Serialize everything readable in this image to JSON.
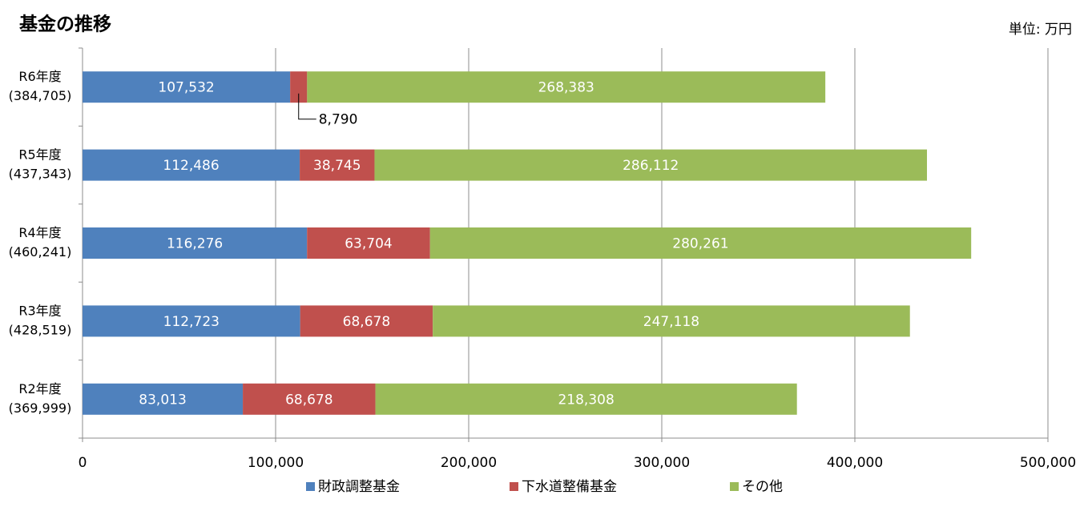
{
  "chart_data": {
    "type": "stacked-barh",
    "title": "基金の推移",
    "unit_label": "単位: 万円",
    "categories": [
      "R6年度",
      "R5年度",
      "R4年度",
      "R3年度",
      "R2年度"
    ],
    "category_totals": [
      "(384,705)",
      "(437,343)",
      "(460,241)",
      "(428,519)",
      "(369,999)"
    ],
    "series": [
      {
        "name": "財政調整基金",
        "color": "#4f81bd",
        "values": [
          107532,
          112486,
          116276,
          112723,
          83013
        ],
        "value_labels": [
          "107,532",
          "112,486",
          "116,276",
          "112,723",
          "83,013"
        ]
      },
      {
        "name": "下水道整備基金",
        "color": "#c0504d",
        "values": [
          8790,
          38745,
          63704,
          68678,
          68678
        ],
        "value_labels": [
          "8,790",
          "38,745",
          "63,704",
          "68,678",
          "68,678"
        ]
      },
      {
        "name": "その他",
        "color": "#9bbb59",
        "values": [
          268383,
          286112,
          280261,
          247118,
          218308
        ],
        "value_labels": [
          "268,383",
          "286,112",
          "280,261",
          "247,118",
          "218,308"
        ]
      }
    ],
    "xlim": [
      0,
      500000
    ],
    "xticks": [
      0,
      {
        "value": 100000,
        "label": "100,000"
      },
      {
        "value": 200000,
        "label": "200,000"
      },
      {
        "value": 300000,
        "label": "300,000"
      },
      {
        "value": 400000,
        "label": "400,000"
      },
      {
        "value": 500000,
        "label": "500,000"
      }
    ],
    "grid": true,
    "legend": "bottom"
  }
}
